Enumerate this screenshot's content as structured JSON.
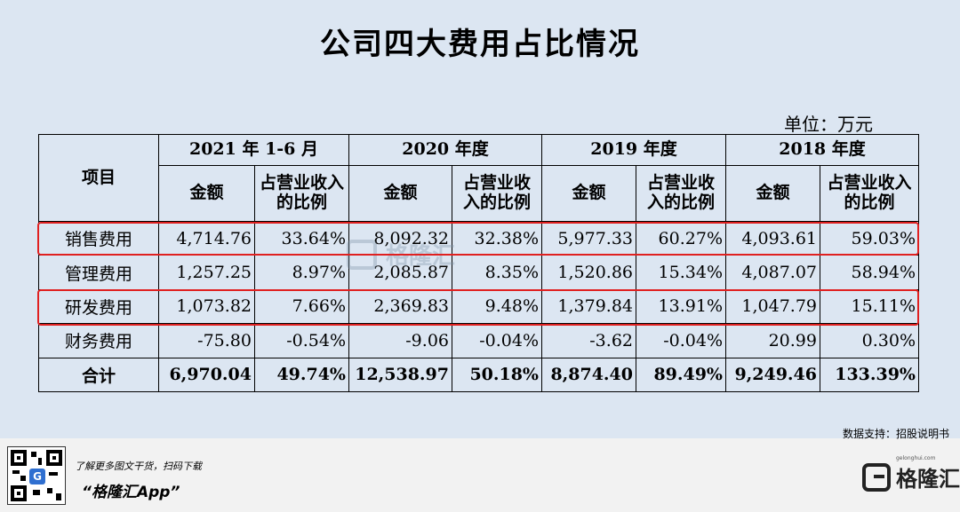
{
  "title": "公司四大费用占比情况",
  "unit": "单位：万元",
  "table": {
    "item_header": "项目",
    "years": [
      "2021 年 1-6 月",
      "2020 年度",
      "2019 年度",
      "2018 年度"
    ],
    "sub_amount": "金额",
    "sub_ratio": "占营业收入的比例",
    "rows": [
      {
        "label": "销售费用",
        "values": [
          "4,714.76",
          "33.64%",
          "8,092.32",
          "32.38%",
          "5,977.33",
          "60.27%",
          "4,093.61",
          "59.03%"
        ]
      },
      {
        "label": "管理费用",
        "values": [
          "1,257.25",
          "8.97%",
          "2,085.87",
          "8.35%",
          "1,520.86",
          "15.34%",
          "4,087.07",
          "58.94%"
        ]
      },
      {
        "label": "研发费用",
        "values": [
          "1,073.82",
          "7.66%",
          "2,369.83",
          "9.48%",
          "1,379.84",
          "13.91%",
          "1,047.79",
          "15.11%"
        ]
      },
      {
        "label": "财务费用",
        "values": [
          "-75.80",
          "-0.54%",
          "-9.06",
          "-0.04%",
          "-3.62",
          "-0.04%",
          "20.99",
          "0.30%"
        ]
      },
      {
        "label": "合计",
        "values": [
          "6,970.04",
          "49.74%",
          "12,538.97",
          "50.18%",
          "8,874.40",
          "89.49%",
          "9,249.46",
          "133.39%"
        ]
      }
    ]
  },
  "highlight_color": "#e02020",
  "watermark": "格隆汇",
  "source": "数据支持：招股说明书",
  "promo": {
    "line1": "了解更多图文干货，扫码下载",
    "line2": "“格隆汇App”"
  },
  "logo": {
    "name": "格隆汇",
    "site": "gelonghui.com"
  }
}
